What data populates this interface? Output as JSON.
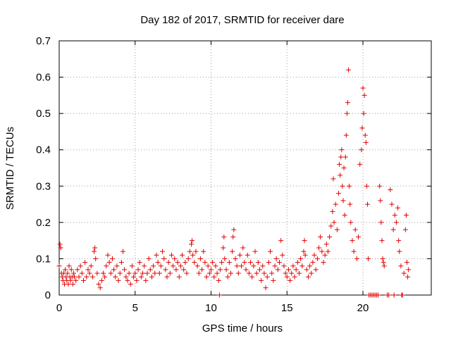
{
  "chart_data": {
    "type": "scatter",
    "title": "Day 182 of 2017, SRMTID for receiver dare",
    "xlabel": "GPS time / hours",
    "ylabel": "SRMTID / TECUs",
    "xlim": [
      0,
      24.5
    ],
    "ylim": [
      0,
      0.7
    ],
    "xticks": [
      0,
      5,
      10,
      15,
      20
    ],
    "yticks": [
      0,
      0.1,
      0.2,
      0.3,
      0.4,
      0.5,
      0.6,
      0.7
    ],
    "ytick_labels": [
      "0",
      "0.1",
      "0.2",
      "0.3",
      "0.4",
      "0.5",
      "0.6",
      "0.7"
    ],
    "grid": true,
    "marker": "+",
    "color": "#e00000",
    "series": [
      {
        "name": "SRMTID",
        "points": [
          [
            0.0,
            0.08
          ],
          [
            0.05,
            0.14
          ],
          [
            0.1,
            0.13
          ],
          [
            0.15,
            0.06
          ],
          [
            0.2,
            0.05
          ],
          [
            0.25,
            0.04
          ],
          [
            0.3,
            0.06
          ],
          [
            0.35,
            0.03
          ],
          [
            0.4,
            0.07
          ],
          [
            0.45,
            0.05
          ],
          [
            0.5,
            0.04
          ],
          [
            0.55,
            0.06
          ],
          [
            0.6,
            0.03
          ],
          [
            0.65,
            0.08
          ],
          [
            0.7,
            0.05
          ],
          [
            0.75,
            0.04
          ],
          [
            0.8,
            0.07
          ],
          [
            0.85,
            0.05
          ],
          [
            0.9,
            0.03
          ],
          [
            0.95,
            0.06
          ],
          [
            1.0,
            0.05
          ],
          [
            1.1,
            0.04
          ],
          [
            1.2,
            0.07
          ],
          [
            1.3,
            0.05
          ],
          [
            1.4,
            0.08
          ],
          [
            1.5,
            0.06
          ],
          [
            1.6,
            0.04
          ],
          [
            1.7,
            0.09
          ],
          [
            1.8,
            0.05
          ],
          [
            1.9,
            0.07
          ],
          [
            2.0,
            0.06
          ],
          [
            2.1,
            0.08
          ],
          [
            2.2,
            0.05
          ],
          [
            2.3,
            0.12
          ],
          [
            2.35,
            0.13
          ],
          [
            2.4,
            0.1
          ],
          [
            2.5,
            0.06
          ],
          [
            2.6,
            0.03
          ],
          [
            2.7,
            0.02
          ],
          [
            2.8,
            0.04
          ],
          [
            2.9,
            0.06
          ],
          [
            3.0,
            0.05
          ],
          [
            3.1,
            0.08
          ],
          [
            3.2,
            0.11
          ],
          [
            3.3,
            0.09
          ],
          [
            3.4,
            0.06
          ],
          [
            3.5,
            0.1
          ],
          [
            3.6,
            0.07
          ],
          [
            3.7,
            0.05
          ],
          [
            3.8,
            0.08
          ],
          [
            3.9,
            0.04
          ],
          [
            4.0,
            0.06
          ],
          [
            4.1,
            0.09
          ],
          [
            4.2,
            0.12
          ],
          [
            4.3,
            0.07
          ],
          [
            4.4,
            0.05
          ],
          [
            4.5,
            0.04
          ],
          [
            4.6,
            0.06
          ],
          [
            4.7,
            0.03
          ],
          [
            4.8,
            0.08
          ],
          [
            4.9,
            0.05
          ],
          [
            5.0,
            0.06
          ],
          [
            5.1,
            0.04
          ],
          [
            5.2,
            0.07
          ],
          [
            5.3,
            0.09
          ],
          [
            5.4,
            0.05
          ],
          [
            5.5,
            0.06
          ],
          [
            5.6,
            0.08
          ],
          [
            5.7,
            0.04
          ],
          [
            5.8,
            0.06
          ],
          [
            5.9,
            0.1
          ],
          [
            6.0,
            0.07
          ],
          [
            6.1,
            0.05
          ],
          [
            6.2,
            0.08
          ],
          [
            6.3,
            0.06
          ],
          [
            6.4,
            0.11
          ],
          [
            6.5,
            0.09
          ],
          [
            6.6,
            0.06
          ],
          [
            6.7,
            0.08
          ],
          [
            6.8,
            0.12
          ],
          [
            6.9,
            0.1
          ],
          [
            7.0,
            0.07
          ],
          [
            7.1,
            0.05
          ],
          [
            7.2,
            0.09
          ],
          [
            7.3,
            0.06
          ],
          [
            7.4,
            0.11
          ],
          [
            7.5,
            0.08
          ],
          [
            7.6,
            0.1
          ],
          [
            7.7,
            0.07
          ],
          [
            7.8,
            0.09
          ],
          [
            7.9,
            0.05
          ],
          [
            8.0,
            0.08
          ],
          [
            8.1,
            0.11
          ],
          [
            8.2,
            0.07
          ],
          [
            8.3,
            0.09
          ],
          [
            8.4,
            0.06
          ],
          [
            8.5,
            0.1
          ],
          [
            8.6,
            0.12
          ],
          [
            8.7,
            0.14
          ],
          [
            8.75,
            0.15
          ],
          [
            8.8,
            0.11
          ],
          [
            8.9,
            0.09
          ],
          [
            9.0,
            0.12
          ],
          [
            9.1,
            0.08
          ],
          [
            9.2,
            0.06
          ],
          [
            9.3,
            0.1
          ],
          [
            9.4,
            0.07
          ],
          [
            9.5,
            0.12
          ],
          [
            9.6,
            0.09
          ],
          [
            9.7,
            0.05
          ],
          [
            9.8,
            0.08
          ],
          [
            9.9,
            0.06
          ],
          [
            10.0,
            0.07
          ],
          [
            10.1,
            0.09
          ],
          [
            10.2,
            0.05
          ],
          [
            10.3,
            0.08
          ],
          [
            10.4,
            0.06
          ],
          [
            10.5,
            0.04
          ],
          [
            10.55,
            0.0
          ],
          [
            10.6,
            0.07
          ],
          [
            10.7,
            0.09
          ],
          [
            10.8,
            0.13
          ],
          [
            10.85,
            0.16
          ],
          [
            10.9,
            0.1
          ],
          [
            11.0,
            0.07
          ],
          [
            11.1,
            0.05
          ],
          [
            11.2,
            0.09
          ],
          [
            11.3,
            0.06
          ],
          [
            11.4,
            0.12
          ],
          [
            11.45,
            0.16
          ],
          [
            11.5,
            0.18
          ],
          [
            11.6,
            0.1
          ],
          [
            11.7,
            0.08
          ],
          [
            11.8,
            0.06
          ],
          [
            11.9,
            0.11
          ],
          [
            12.0,
            0.08
          ],
          [
            12.1,
            0.13
          ],
          [
            12.2,
            0.09
          ],
          [
            12.3,
            0.07
          ],
          [
            12.4,
            0.11
          ],
          [
            12.5,
            0.06
          ],
          [
            12.6,
            0.09
          ],
          [
            12.7,
            0.05
          ],
          [
            12.8,
            0.08
          ],
          [
            12.9,
            0.12
          ],
          [
            13.0,
            0.06
          ],
          [
            13.1,
            0.09
          ],
          [
            13.2,
            0.07
          ],
          [
            13.3,
            0.04
          ],
          [
            13.4,
            0.08
          ],
          [
            13.5,
            0.06
          ],
          [
            13.6,
            0.02
          ],
          [
            13.7,
            0.05
          ],
          [
            13.8,
            0.09
          ],
          [
            13.9,
            0.12
          ],
          [
            14.0,
            0.06
          ],
          [
            14.1,
            0.04
          ],
          [
            14.2,
            0.08
          ],
          [
            14.3,
            0.1
          ],
          [
            14.4,
            0.07
          ],
          [
            14.5,
            0.09
          ],
          [
            14.6,
            0.15
          ],
          [
            14.7,
            0.11
          ],
          [
            14.8,
            0.08
          ],
          [
            14.9,
            0.06
          ],
          [
            15.0,
            0.05
          ],
          [
            15.1,
            0.07
          ],
          [
            15.2,
            0.04
          ],
          [
            15.3,
            0.06
          ],
          [
            15.4,
            0.08
          ],
          [
            15.5,
            0.05
          ],
          [
            15.6,
            0.07
          ],
          [
            15.7,
            0.09
          ],
          [
            15.8,
            0.06
          ],
          [
            15.9,
            0.1
          ],
          [
            16.0,
            0.08
          ],
          [
            16.1,
            0.12
          ],
          [
            16.15,
            0.15
          ],
          [
            16.2,
            0.11
          ],
          [
            16.3,
            0.07
          ],
          [
            16.4,
            0.05
          ],
          [
            16.5,
            0.08
          ],
          [
            16.6,
            0.06
          ],
          [
            16.7,
            0.09
          ],
          [
            16.8,
            0.11
          ],
          [
            16.9,
            0.07
          ],
          [
            17.0,
            0.1
          ],
          [
            17.1,
            0.13
          ],
          [
            17.2,
            0.16
          ],
          [
            17.3,
            0.12
          ],
          [
            17.4,
            0.09
          ],
          [
            17.5,
            0.11
          ],
          [
            17.6,
            0.14
          ],
          [
            17.7,
            0.12
          ],
          [
            17.8,
            0.16
          ],
          [
            17.9,
            0.19
          ],
          [
            18.0,
            0.23
          ],
          [
            18.05,
            0.32
          ],
          [
            18.1,
            0.2
          ],
          [
            18.2,
            0.25
          ],
          [
            18.3,
            0.18
          ],
          [
            18.4,
            0.28
          ],
          [
            18.45,
            0.36
          ],
          [
            18.5,
            0.33
          ],
          [
            18.55,
            0.38
          ],
          [
            18.6,
            0.4
          ],
          [
            18.65,
            0.3
          ],
          [
            18.7,
            0.26
          ],
          [
            18.75,
            0.35
          ],
          [
            18.8,
            0.22
          ],
          [
            18.85,
            0.38
          ],
          [
            18.9,
            0.44
          ],
          [
            18.95,
            0.5
          ],
          [
            19.0,
            0.53
          ],
          [
            19.05,
            0.62
          ],
          [
            19.1,
            0.3
          ],
          [
            19.15,
            0.25
          ],
          [
            19.2,
            0.2
          ],
          [
            19.3,
            0.15
          ],
          [
            19.4,
            0.12
          ],
          [
            19.5,
            0.18
          ],
          [
            19.6,
            0.1
          ],
          [
            19.7,
            0.16
          ],
          [
            19.8,
            0.36
          ],
          [
            19.9,
            0.4
          ],
          [
            19.95,
            0.46
          ],
          [
            20.0,
            0.57
          ],
          [
            20.05,
            0.5
          ],
          [
            20.1,
            0.55
          ],
          [
            20.15,
            0.44
          ],
          [
            20.2,
            0.42
          ],
          [
            20.25,
            0.3
          ],
          [
            20.3,
            0.25
          ],
          [
            20.35,
            0.1
          ],
          [
            20.4,
            0.0
          ],
          [
            20.5,
            0.0
          ],
          [
            20.6,
            0.0
          ],
          [
            20.7,
            0.0
          ],
          [
            20.8,
            0.0
          ],
          [
            20.9,
            0.0
          ],
          [
            21.0,
            0.0
          ],
          [
            21.1,
            0.3
          ],
          [
            21.15,
            0.26
          ],
          [
            21.2,
            0.2
          ],
          [
            21.25,
            0.15
          ],
          [
            21.3,
            0.1
          ],
          [
            21.35,
            0.09
          ],
          [
            21.4,
            0.08
          ],
          [
            21.6,
            0.0
          ],
          [
            21.7,
            0.0
          ],
          [
            21.8,
            0.29
          ],
          [
            21.9,
            0.25
          ],
          [
            22.0,
            0.18
          ],
          [
            22.05,
            0.0
          ],
          [
            22.1,
            0.22
          ],
          [
            22.2,
            0.2
          ],
          [
            22.3,
            0.24
          ],
          [
            22.35,
            0.15
          ],
          [
            22.4,
            0.12
          ],
          [
            22.5,
            0.08
          ],
          [
            22.55,
            0.0
          ],
          [
            22.6,
            0.0
          ],
          [
            22.7,
            0.06
          ],
          [
            22.8,
            0.18
          ],
          [
            22.85,
            0.22
          ],
          [
            22.9,
            0.09
          ],
          [
            22.95,
            0.05
          ],
          [
            23.0,
            0.07
          ]
        ]
      }
    ]
  }
}
